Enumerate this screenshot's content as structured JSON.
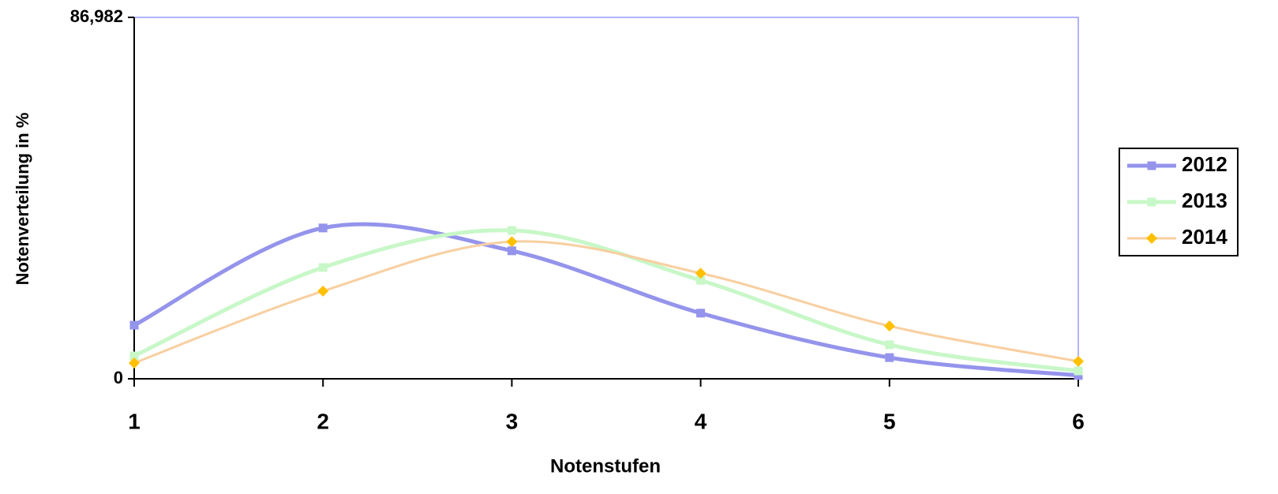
{
  "chart_data": {
    "type": "line",
    "xlabel": "Notenstufen",
    "ylabel": "Notenverteilung in %",
    "x": [
      1,
      2,
      3,
      4,
      5,
      6
    ],
    "xlim": [
      1,
      6
    ],
    "xticks": [
      1,
      2,
      3,
      4,
      5,
      6
    ],
    "ylim": [
      0,
      86.982
    ],
    "yticks": [
      0,
      {
        "value": 86.982,
        "label": "86,982"
      }
    ],
    "legend": "right",
    "series": [
      {
        "name": "2012",
        "color": "#9494ec",
        "marker": "square",
        "marker_color": "#9494ec",
        "values": [
          12.9,
          36.3,
          30.8,
          15.8,
          5.1,
          0.8
        ]
      },
      {
        "name": "2013",
        "color": "#c8f7c8",
        "marker": "square",
        "marker_color": "#c8f7c8",
        "values": [
          5.5,
          26.8,
          35.7,
          23.7,
          8.2,
          1.9
        ]
      },
      {
        "name": "2014",
        "color": "#f8cfa0",
        "marker": "diamond",
        "marker_color": "#ffc000",
        "values": [
          3.8,
          21.1,
          33.0,
          25.4,
          12.7,
          4.2
        ]
      }
    ]
  }
}
